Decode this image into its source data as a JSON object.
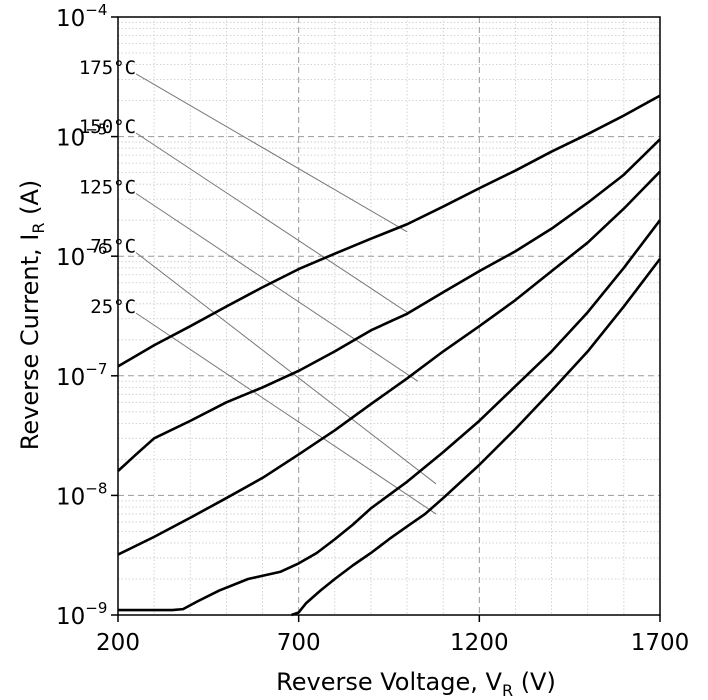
{
  "chart_data": {
    "type": "line",
    "xlabel": {
      "main": "Reverse Voltage, V",
      "sub": "R",
      "unit": " (V)"
    },
    "ylabel": {
      "main": "Reverse Current, I",
      "sub": "R",
      "unit": " (A)"
    },
    "x_scale": "linear",
    "y_scale": "log",
    "xlim": [
      200,
      1700
    ],
    "ylim": [
      1e-09,
      0.0001
    ],
    "x_ticks": [
      {
        "value": 200,
        "label": "200"
      },
      {
        "value": 700,
        "label": "700"
      },
      {
        "value": 1200,
        "label": "1200"
      },
      {
        "value": 1700,
        "label": "1700"
      }
    ],
    "y_ticks": [
      {
        "value": 1e-09,
        "base": "10",
        "exp": "−9"
      },
      {
        "value": 1e-08,
        "base": "10",
        "exp": "−8"
      },
      {
        "value": 1e-07,
        "base": "10",
        "exp": "−7"
      },
      {
        "value": 1e-06,
        "base": "10",
        "exp": "−6"
      },
      {
        "value": 1e-05,
        "base": "10",
        "exp": "−5"
      },
      {
        "value": 0.0001,
        "base": "10",
        "exp": "−4"
      }
    ],
    "grid": true,
    "series": [
      {
        "name": "175°C",
        "x": [
          200,
          300,
          400,
          500,
          600,
          700,
          800,
          900,
          1000,
          1100,
          1200,
          1300,
          1400,
          1500,
          1600,
          1700
        ],
        "y": [
          1.2e-07,
          1.8e-07,
          2.6e-07,
          3.8e-07,
          5.5e-07,
          7.8e-07,
          1.05e-06,
          1.4e-06,
          1.85e-06,
          2.6e-06,
          3.7e-06,
          5.2e-06,
          7.5e-06,
          1.05e-05,
          1.5e-05,
          2.2e-05
        ],
        "label_anchor": [
          1000,
          1.6e-06
        ]
      },
      {
        "name": "150°C",
        "x": [
          200,
          250,
          300,
          400,
          500,
          600,
          700,
          800,
          900,
          1000,
          1100,
          1200,
          1300,
          1400,
          1500,
          1600,
          1700
        ],
        "y": [
          1.6e-08,
          2.2e-08,
          3e-08,
          4.2e-08,
          6e-08,
          8e-08,
          1.1e-07,
          1.6e-07,
          2.4e-07,
          3.3e-07,
          5e-07,
          7.5e-07,
          1.1e-06,
          1.7e-06,
          2.8e-06,
          4.8e-06,
          9.5e-06
        ],
        "label_anchor": [
          1000,
          3.4e-07
        ]
      },
      {
        "name": "125°C",
        "x": [
          200,
          300,
          400,
          500,
          600,
          700,
          800,
          900,
          1000,
          1100,
          1200,
          1300,
          1400,
          1500,
          1600,
          1700
        ],
        "y": [
          3.2e-09,
          4.5e-09,
          6.5e-09,
          9.5e-09,
          1.4e-08,
          2.2e-08,
          3.5e-08,
          5.8e-08,
          9.5e-08,
          1.6e-07,
          2.6e-07,
          4.3e-07,
          7.5e-07,
          1.3e-06,
          2.5e-06,
          5.1e-06
        ],
        "label_anchor": [
          1030,
          9e-08
        ]
      },
      {
        "name": "75°C",
        "x": [
          200,
          350,
          380,
          420,
          480,
          560,
          650,
          700,
          750,
          800,
          850,
          900,
          1000,
          1100,
          1200,
          1300,
          1400,
          1500,
          1600,
          1700
        ],
        "y": [
          1.1e-09,
          1.1e-09,
          1.12e-09,
          1.3e-09,
          1.6e-09,
          2e-09,
          2.3e-09,
          2.7e-09,
          3.3e-09,
          4.3e-09,
          5.7e-09,
          7.8e-09,
          1.3e-08,
          2.3e-08,
          4.2e-08,
          8.2e-08,
          1.6e-07,
          3.4e-07,
          8e-07,
          2e-06
        ],
        "label_anchor": [
          1080,
          1.25e-08
        ]
      },
      {
        "name": "25°C",
        "x": [
          680,
          700,
          720,
          760,
          800,
          850,
          900,
          950,
          1000,
          1050,
          1100,
          1200,
          1300,
          1400,
          1500,
          1600,
          1700
        ],
        "y": [
          1e-09,
          1.05e-09,
          1.25e-09,
          1.6e-09,
          2e-09,
          2.6e-09,
          3.3e-09,
          4.3e-09,
          5.5e-09,
          7e-09,
          9.5e-09,
          1.8e-08,
          3.6e-08,
          7.5e-08,
          1.6e-07,
          3.8e-07,
          9.5e-07
        ],
        "label_anchor": [
          1080,
          7e-09
        ]
      }
    ],
    "series_label_x": 250,
    "series_label_y": [
      3.9e-05,
      1.25e-05,
      3.9e-06,
      1.25e-06,
      3.9e-07
    ]
  }
}
